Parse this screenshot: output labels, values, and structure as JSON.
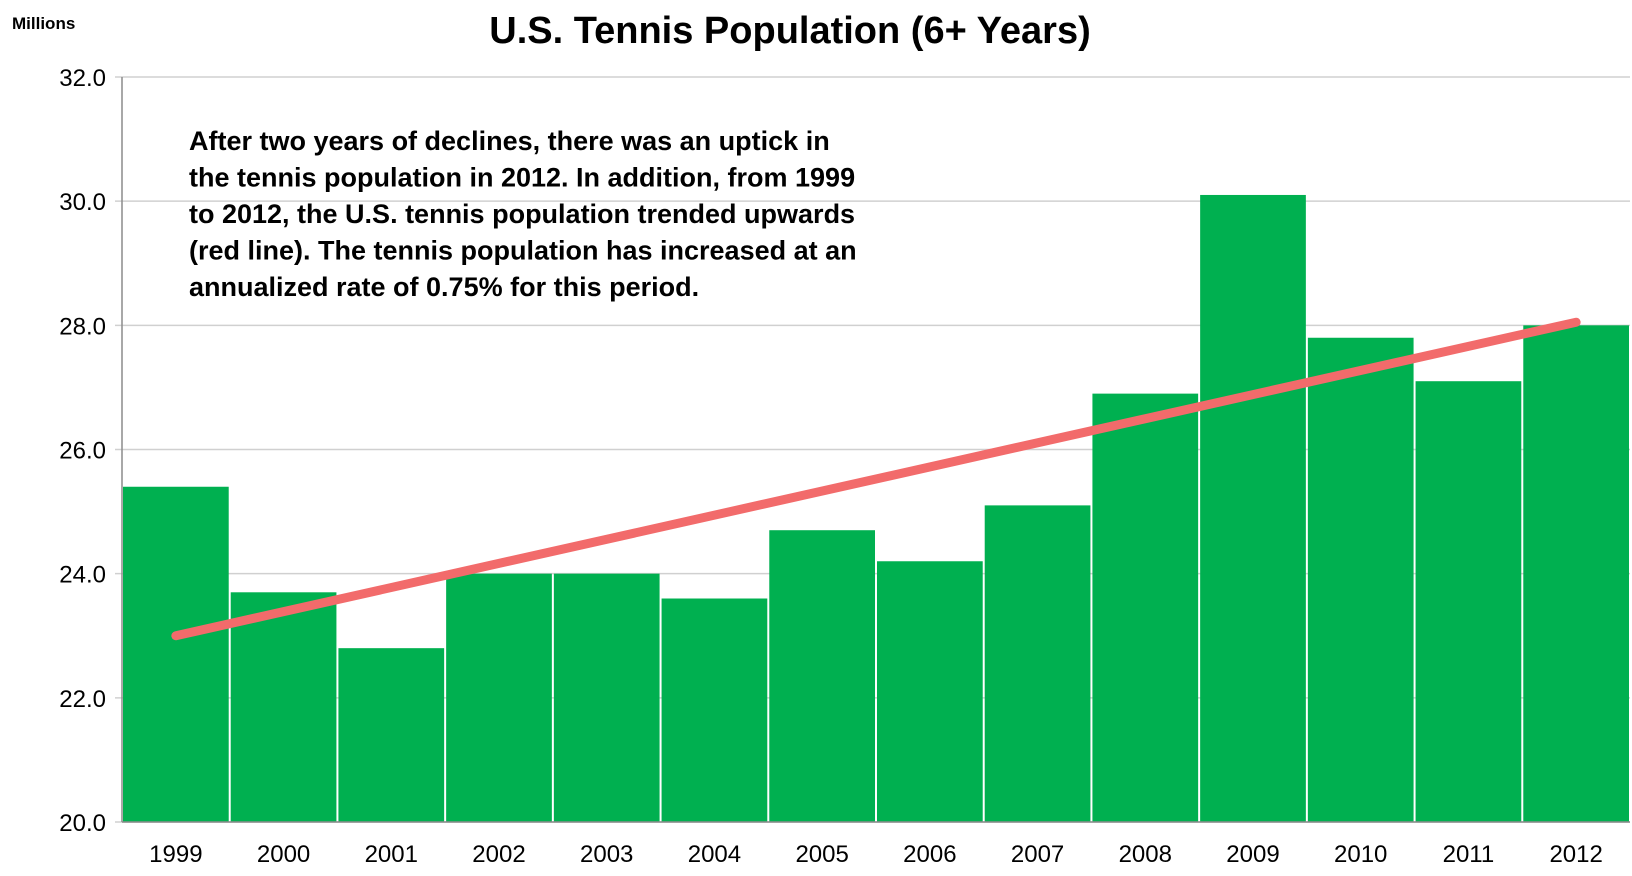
{
  "chart_data": {
    "type": "bar",
    "title": "U.S. Tennis Population (6+ Years)",
    "unit_label": "Millions",
    "categories": [
      "1999",
      "2000",
      "2001",
      "2002",
      "2003",
      "2004",
      "2005",
      "2006",
      "2007",
      "2008",
      "2009",
      "2010",
      "2011",
      "2012"
    ],
    "series": [
      {
        "values": [
          25.4,
          23.7,
          22.8,
          24.0,
          24.0,
          23.6,
          24.7,
          24.2,
          25.1,
          26.9,
          30.1,
          27.8,
          27.1,
          28.0
        ],
        "color": "#00b050"
      }
    ],
    "trendline": {
      "start": 23.0,
      "end": 28.05,
      "color": "#f26b6b"
    },
    "ylim": [
      20.0,
      32.0
    ],
    "yticks": [
      "20.0",
      "22.0",
      "24.0",
      "26.0",
      "28.0",
      "30.0",
      "32.0"
    ],
    "grid": true,
    "annotation": [
      "After two years of declines, there was an uptick in",
      "the tennis population in 2012. In addition, from 1999",
      "to 2012, the U.S. tennis population trended upwards",
      "(red line). The tennis population has increased at an",
      "annualized rate of 0.75% for this period."
    ]
  }
}
